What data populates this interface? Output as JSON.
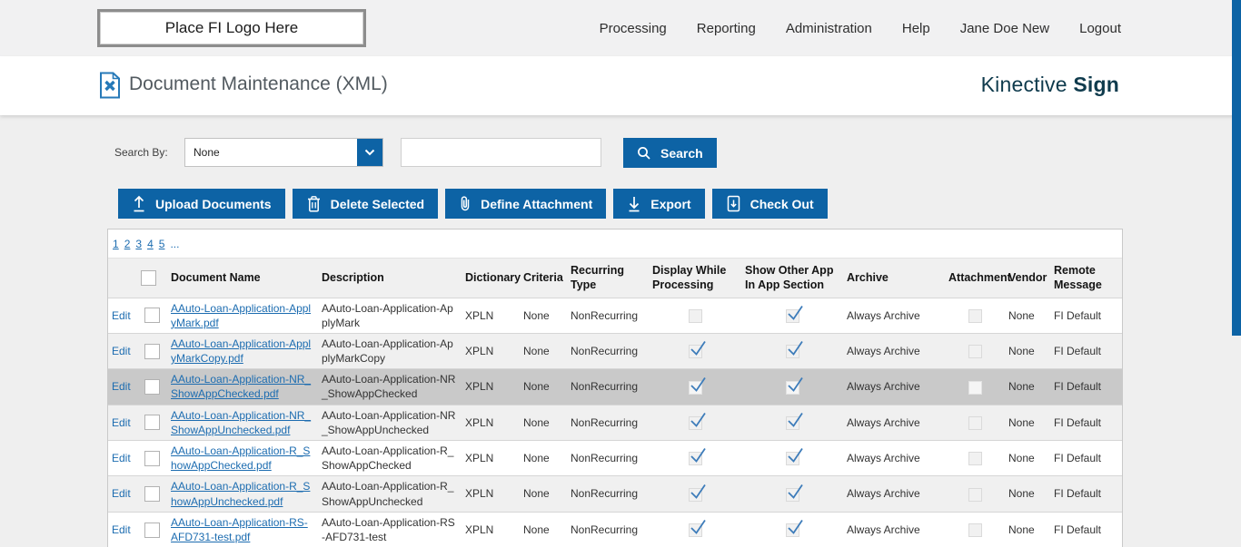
{
  "header": {
    "logo_text": "Place FI Logo Here",
    "nav": [
      "Processing",
      "Reporting",
      "Administration",
      "Help",
      "Jane Doe New",
      "Logout"
    ]
  },
  "title_bar": {
    "title": "Document Maintenance (XML)",
    "brand_name": "Kinective",
    "brand_suffix": "Sign"
  },
  "search": {
    "label": "Search By:",
    "dropdown_value": "None",
    "input_value": "",
    "button_label": "Search"
  },
  "toolbar": {
    "buttons": [
      {
        "id": "upload-documents",
        "label": "Upload Documents"
      },
      {
        "id": "delete-selected",
        "label": "Delete Selected"
      },
      {
        "id": "define-attachment",
        "label": "Define Attachment"
      },
      {
        "id": "export",
        "label": "Export"
      },
      {
        "id": "check-out",
        "label": "Check Out"
      }
    ]
  },
  "pagination": {
    "pages": [
      "1",
      "2",
      "3",
      "4",
      "5"
    ],
    "ellipsis": "..."
  },
  "table": {
    "edit_label": "Edit",
    "columns": [
      "",
      "",
      "Document Name",
      "Description",
      "Dictionary",
      "Criteria",
      "Recurring Type",
      "Display While Processing",
      "Show Other App In App Section",
      "Archive",
      "Attachment",
      "Vendor",
      "Remote Message"
    ],
    "rows": [
      {
        "document_name": "AAuto-Loan-Application-ApplyMark.pdf",
        "description": "AAuto-Loan-Application-ApplyMark",
        "dictionary": "XPLN",
        "criteria": "None",
        "recurring_type": "NonRecurring",
        "display_while_processing": false,
        "show_other_app_in_app_section": true,
        "archive": "Always Archive",
        "attachment": false,
        "vendor": "None",
        "remote_message": "FI Default",
        "selected": false
      },
      {
        "document_name": "AAuto-Loan-Application-ApplyMarkCopy.pdf",
        "description": "AAuto-Loan-Application-ApplyMarkCopy",
        "dictionary": "XPLN",
        "criteria": "None",
        "recurring_type": "NonRecurring",
        "display_while_processing": true,
        "show_other_app_in_app_section": true,
        "archive": "Always Archive",
        "attachment": false,
        "vendor": "None",
        "remote_message": "FI Default",
        "selected": false
      },
      {
        "document_name": "AAuto-Loan-Application-NR_ShowAppChecked.pdf",
        "description": "AAuto-Loan-Application-NR_ShowAppChecked",
        "dictionary": "XPLN",
        "criteria": "None",
        "recurring_type": "NonRecurring",
        "display_while_processing": true,
        "show_other_app_in_app_section": true,
        "archive": "Always Archive",
        "attachment": false,
        "vendor": "None",
        "remote_message": "FI Default",
        "selected": true
      },
      {
        "document_name": "AAuto-Loan-Application-NR_ShowAppUnchecked.pdf",
        "description": "AAuto-Loan-Application-NR_ShowAppUnchecked",
        "dictionary": "XPLN",
        "criteria": "None",
        "recurring_type": "NonRecurring",
        "display_while_processing": true,
        "show_other_app_in_app_section": true,
        "archive": "Always Archive",
        "attachment": false,
        "vendor": "None",
        "remote_message": "FI Default",
        "selected": false
      },
      {
        "document_name": "AAuto-Loan-Application-R_ShowAppChecked.pdf",
        "description": "AAuto-Loan-Application-R_ShowAppChecked",
        "dictionary": "XPLN",
        "criteria": "None",
        "recurring_type": "NonRecurring",
        "display_while_processing": true,
        "show_other_app_in_app_section": true,
        "archive": "Always Archive",
        "attachment": false,
        "vendor": "None",
        "remote_message": "FI Default",
        "selected": false
      },
      {
        "document_name": "AAuto-Loan-Application-R_ShowAppUnchecked.pdf",
        "description": "AAuto-Loan-Application-R_ShowAppUnchecked",
        "dictionary": "XPLN",
        "criteria": "None",
        "recurring_type": "NonRecurring",
        "display_while_processing": true,
        "show_other_app_in_app_section": true,
        "archive": "Always Archive",
        "attachment": false,
        "vendor": "None",
        "remote_message": "FI Default",
        "selected": false
      },
      {
        "document_name": "AAuto-Loan-Application-RS-AFD731-test.pdf",
        "description": "AAuto-Loan-Application-RS-AFD731-test",
        "dictionary": "XPLN",
        "criteria": "None",
        "recurring_type": "NonRecurring",
        "display_while_processing": true,
        "show_other_app_in_app_section": true,
        "archive": "Always Archive",
        "attachment": false,
        "vendor": "None",
        "remote_message": "FI Default",
        "selected": false
      }
    ]
  },
  "colors": {
    "primary_blue": "#0d63a5",
    "link_blue": "#1c6cb0",
    "brand_teal": "#0f3b4d",
    "selected_row": "#c9c9c9",
    "alt_row": "#f0f0f0",
    "topbar_bg": "#f1f1f2",
    "page_bg": "#efefef"
  }
}
